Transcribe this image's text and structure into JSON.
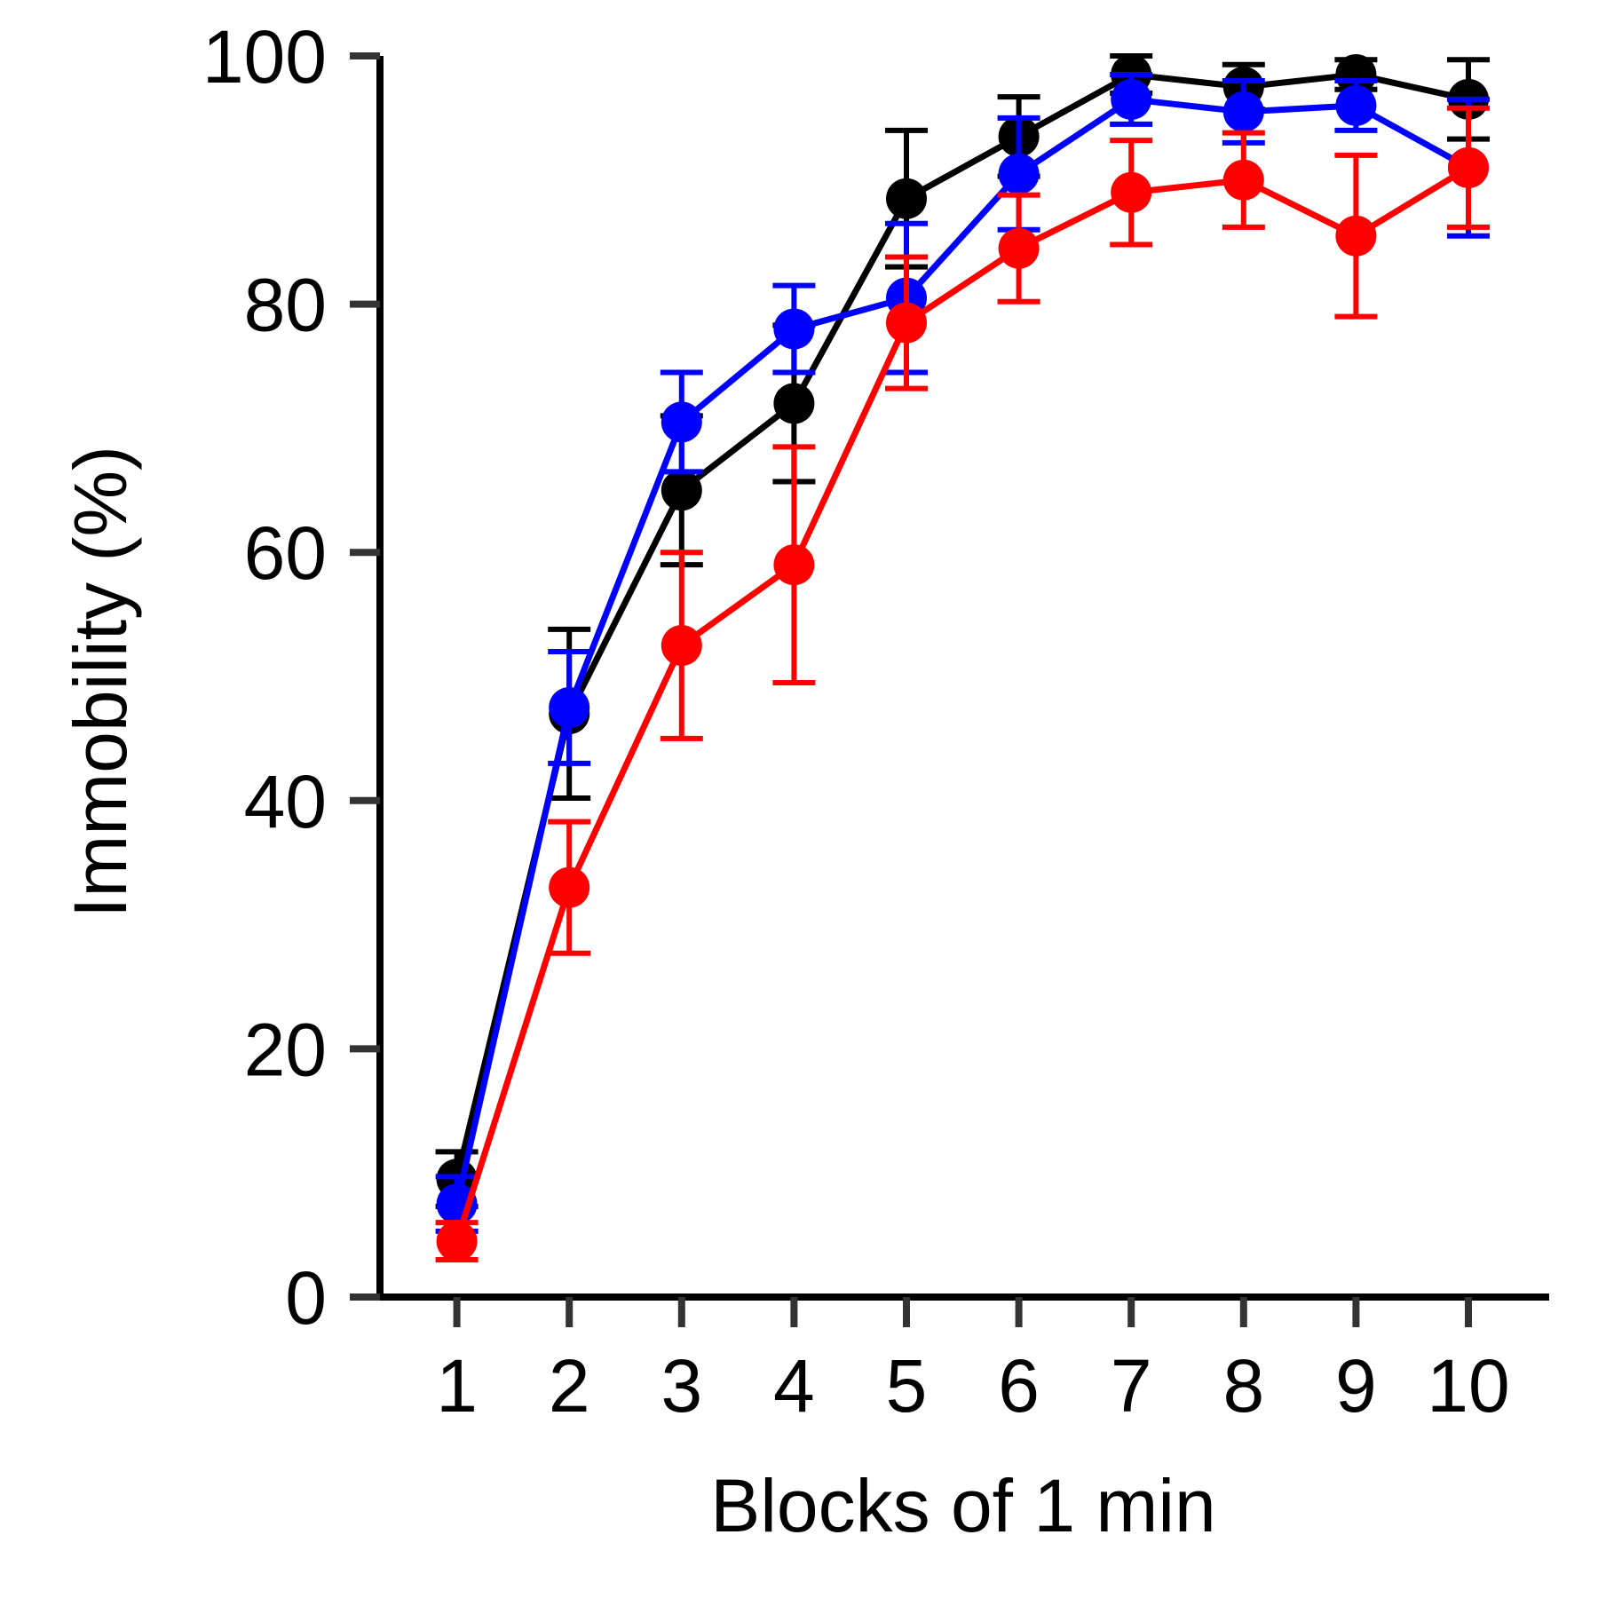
{
  "chart_data": {
    "type": "line",
    "title": "",
    "xlabel": "Blocks of 1 min",
    "ylabel": "Immobility (%)",
    "x": [
      1,
      2,
      3,
      4,
      5,
      6,
      7,
      8,
      9,
      10
    ],
    "x_tick_labels": [
      "1",
      "2",
      "3",
      "4",
      "5",
      "6",
      "7",
      "8",
      "9",
      "10"
    ],
    "y_ticks": [
      0,
      20,
      40,
      60,
      80,
      100
    ],
    "y_tick_labels": [
      "0",
      "20",
      "40",
      "60",
      "80",
      "100"
    ],
    "ylim": [
      0,
      100
    ],
    "xlim": [
      0,
      10.7
    ],
    "grid": false,
    "legend": "none",
    "error_bars": true,
    "series": [
      {
        "color": "#000000",
        "values": [
          9.5,
          47.0,
          65.0,
          72.0,
          88.5,
          93.5,
          98.5,
          97.5,
          98.5,
          96.5
        ],
        "errors": [
          2.2,
          6.8,
          6.0,
          6.3,
          5.5,
          3.2,
          1.5,
          1.8,
          1.2,
          3.2
        ]
      },
      {
        "color": "#0000ff",
        "values": [
          7.5,
          47.5,
          70.5,
          78.0,
          80.5,
          90.5,
          96.5,
          95.5,
          96.0,
          91.0
        ],
        "errors": [
          2.2,
          4.5,
          4.0,
          3.5,
          6.0,
          4.5,
          2.0,
          2.5,
          2.0,
          5.5
        ]
      },
      {
        "color": "#ff0000",
        "values": [
          4.5,
          33.0,
          52.5,
          59.0,
          78.5,
          84.5,
          89.0,
          90.0,
          85.5,
          91.0
        ],
        "errors": [
          1.5,
          5.3,
          7.5,
          9.5,
          5.3,
          4.3,
          4.2,
          3.8,
          6.5,
          4.8
        ]
      }
    ]
  }
}
